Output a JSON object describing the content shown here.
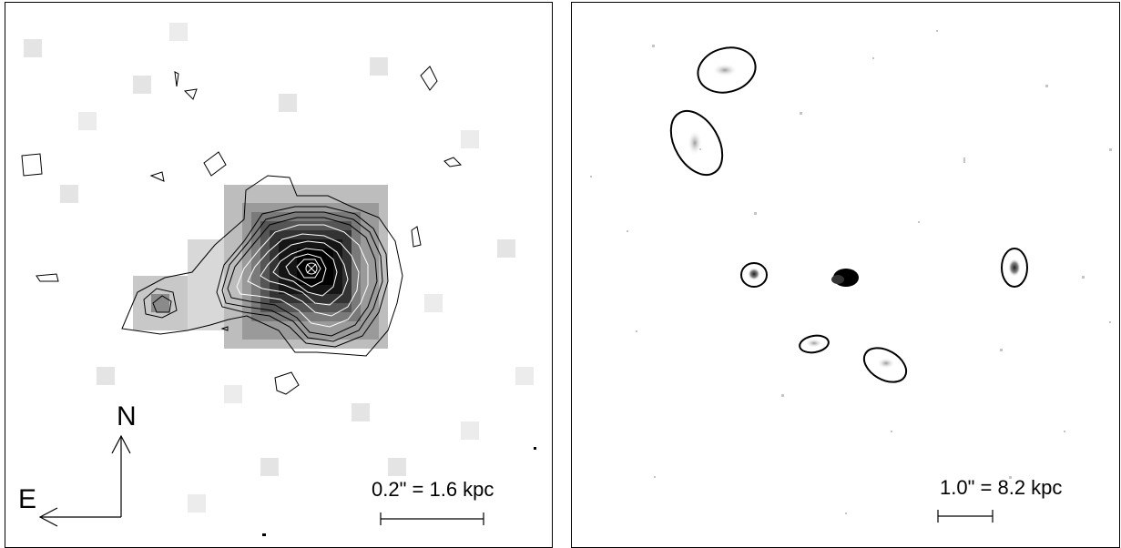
{
  "left_panel": {
    "compass": {
      "north": "N",
      "east": "E"
    },
    "scale_bar": {
      "label": "0.2\" = 1.6 kpc"
    }
  },
  "right_panel": {
    "scale_bar": {
      "label": "1.0\" = 8.2 kpc"
    }
  },
  "colors": {
    "ink": "#000000",
    "background": "#ffffff"
  }
}
